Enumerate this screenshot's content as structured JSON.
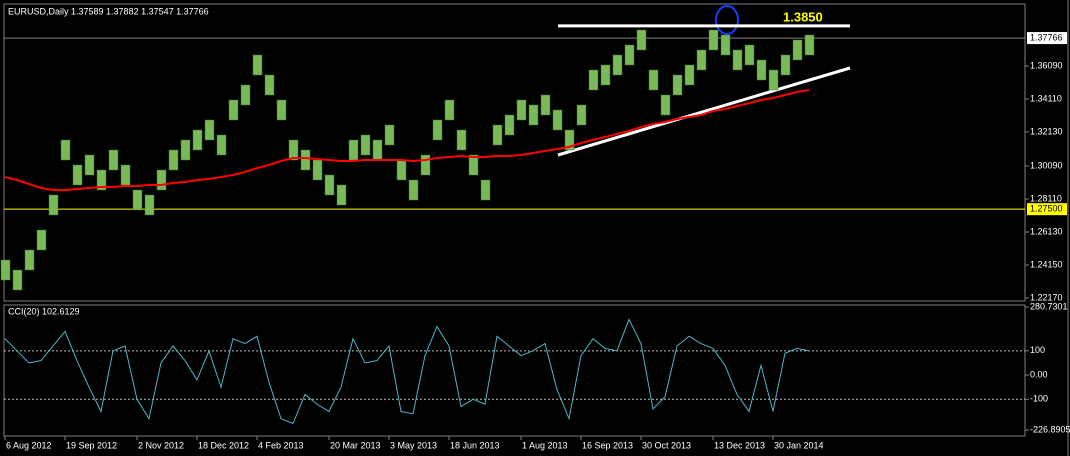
{
  "chart_data": [
    {
      "type": "ohlc",
      "title": "EURUSD,Daily  1.37589 1.37882 1.37547 1.37766",
      "categories": [
        "6 Aug 2012",
        null,
        null,
        null,
        null,
        "19 Sep 2012",
        null,
        null,
        null,
        null,
        null,
        "2 Nov 2012",
        null,
        null,
        null,
        null,
        "18 Dec 2012",
        null,
        null,
        null,
        null,
        "4 Feb 2013",
        null,
        null,
        null,
        null,
        null,
        "20 Mar 2013",
        null,
        null,
        null,
        null,
        "3 May 2013",
        null,
        null,
        null,
        null,
        "18 Jun 2013",
        null,
        null,
        null,
        null,
        null,
        "1 Aug 2013",
        null,
        null,
        null,
        null,
        "16 Sep 2013",
        null,
        null,
        null,
        null,
        "30 Oct 2013",
        null,
        null,
        null,
        null,
        null,
        "13 Dec 2013",
        null,
        null,
        null,
        null,
        "30 Jan 2014",
        null,
        null,
        null
      ],
      "high": [
        1.2445,
        1.2385,
        1.2505,
        1.2625,
        1.2835,
        1.3165,
        1.3015,
        1.3075,
        1.2985,
        1.3105,
        1.3015,
        1.2865,
        1.2835,
        1.2985,
        1.3105,
        1.3165,
        1.3225,
        1.3285,
        1.3195,
        1.3405,
        1.3495,
        1.3675,
        1.3555,
        1.3405,
        1.3165,
        1.3105,
        1.3045,
        1.2955,
        1.2895,
        1.3165,
        1.3195,
        1.3165,
        1.3255,
        1.3045,
        1.2925,
        1.3075,
        1.3285,
        1.3405,
        1.3225,
        1.3075,
        1.2925,
        1.3255,
        1.3315,
        1.3405,
        1.3375,
        1.3435,
        1.3345,
        1.3225,
        1.3375,
        1.3585,
        1.3615,
        1.3675,
        1.3735,
        1.3825,
        1.3585,
        1.3435,
        1.3555,
        1.3615,
        1.3705,
        1.3825,
        1.3795,
        1.3705,
        1.3735,
        1.3645,
        1.3585,
        1.3675,
        1.3765,
        1.3795
      ],
      "low": [
        1.2325,
        1.2265,
        1.2385,
        1.2505,
        1.2715,
        1.3045,
        1.2895,
        1.2955,
        1.2865,
        1.2985,
        1.2895,
        1.2745,
        1.2715,
        1.2865,
        1.2985,
        1.3045,
        1.3105,
        1.3165,
        1.3075,
        1.3285,
        1.3375,
        1.3555,
        1.3435,
        1.3285,
        1.3045,
        1.2985,
        1.2925,
        1.2835,
        1.2775,
        1.3045,
        1.3075,
        1.3045,
        1.3135,
        1.2925,
        1.2805,
        1.2955,
        1.3165,
        1.3285,
        1.3105,
        1.2955,
        1.2805,
        1.3135,
        1.3195,
        1.3285,
        1.3255,
        1.3315,
        1.3225,
        1.3105,
        1.3255,
        1.3465,
        1.3495,
        1.3555,
        1.3615,
        1.3705,
        1.3465,
        1.3315,
        1.3435,
        1.3495,
        1.3585,
        1.3705,
        1.3675,
        1.3585,
        1.3615,
        1.3525,
        1.3465,
        1.3555,
        1.3645,
        1.3675
      ],
      "color": "#79b95a",
      "ma": {
        "color": "#ff0000",
        "values": [
          1.2943,
          1.2925,
          1.2901,
          1.2877,
          1.2865,
          1.2865,
          1.2871,
          1.2877,
          1.2883,
          1.2883,
          1.2889,
          1.2889,
          1.2895,
          1.2895,
          1.2907,
          1.2913,
          1.2925,
          1.2931,
          1.2943,
          1.2955,
          1.2973,
          1.2997,
          1.3015,
          1.3039,
          1.3057,
          1.3057,
          1.3051,
          1.3045,
          1.3039,
          1.3039,
          1.3045,
          1.3045,
          1.3045,
          1.3045,
          1.3039,
          1.3045,
          1.3057,
          1.3063,
          1.3069,
          1.3063,
          1.3063,
          1.3069,
          1.3069,
          1.3075,
          1.3087,
          1.3099,
          1.3111,
          1.3123,
          1.3147,
          1.3165,
          1.3183,
          1.3201,
          1.3219,
          1.3243,
          1.3261,
          1.3273,
          1.3291,
          1.3303,
          1.3315,
          1.3339,
          1.3351,
          1.3369,
          1.3387,
          1.3405,
          1.3417,
          1.3435,
          1.3453,
          1.3465
        ]
      },
      "ylim": [
        1.2199,
        1.3981
      ],
      "yticks": [
        {
          "value": 1.3609,
          "label": "1.36090"
        },
        {
          "value": 1.3411,
          "label": "1.34110"
        },
        {
          "value": 1.3213,
          "label": "1.32130"
        },
        {
          "value": 1.3009,
          "label": "1.30090"
        },
        {
          "value": 1.2811,
          "label": "1.28110"
        },
        {
          "value": 1.2613,
          "label": "1.26130"
        },
        {
          "value": 1.2415,
          "label": "1.24150"
        },
        {
          "value": 1.2217,
          "label": "1.22170"
        }
      ],
      "price_lines": [
        {
          "value": 1.275,
          "label": "1.27500",
          "color": "#ffff00"
        },
        {
          "value": 1.37766,
          "label": "1.37766",
          "color": "#808080"
        }
      ],
      "annotation": {
        "value": 1.385,
        "label": "1.3850",
        "color": "#ffff00"
      }
    },
    {
      "type": "line",
      "title": "CCI(20) 102.6129",
      "color": "#4db6c8",
      "values": [
        150,
        100,
        50,
        60,
        120,
        180,
        60,
        -50,
        -150,
        100,
        120,
        -100,
        -180,
        50,
        120,
        60,
        -20,
        100,
        -50,
        150,
        130,
        160,
        -30,
        -180,
        -200,
        -80,
        -120,
        -150,
        -50,
        150,
        50,
        60,
        120,
        -150,
        -160,
        80,
        200,
        120,
        -130,
        -100,
        -120,
        160,
        120,
        80,
        100,
        130,
        -60,
        -180,
        80,
        150,
        110,
        100,
        230,
        130,
        -140,
        -90,
        120,
        160,
        130,
        110,
        40,
        -80,
        -150,
        40,
        -150,
        90,
        110,
        100
      ],
      "ylim": [
        -235,
        285
      ],
      "yticks": [
        280.7301,
        100,
        {
          "value": 0,
          "label": "0.00"
        },
        -100,
        -226.8905
      ],
      "levels": [
        100,
        -100
      ]
    }
  ]
}
